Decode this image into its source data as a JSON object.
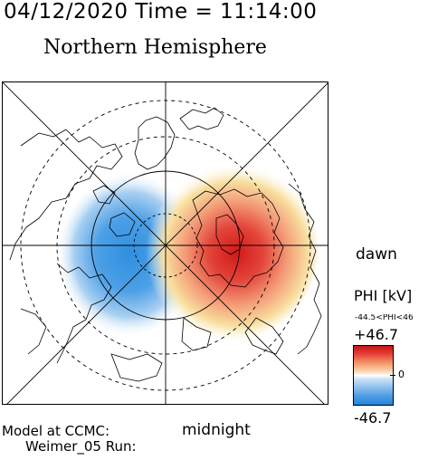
{
  "header": {
    "timestamp": "04/12/2020 Time = 11:14:00",
    "hemisphere": "Northern Hemisphere"
  },
  "map": {
    "orientation_labels": {
      "dawn": "dawn",
      "midnight": "midnight"
    },
    "potential_pattern": {
      "dusk_cell": {
        "sign": "negative",
        "color": "#2f8fe0"
      },
      "dawn_cell": {
        "sign": "positive",
        "color": "#d8201c"
      }
    }
  },
  "colorbar": {
    "title": "PHI [kV]",
    "range_text": "-44.5<PHI<46",
    "max_label": "+46.7",
    "zero_label": "0",
    "min_label": "-46.7",
    "colors": {
      "max": "#c41414",
      "mid": "#ffffff",
      "min": "#2585d8"
    }
  },
  "footer": {
    "model_line1": "Model at CCMC:",
    "model_line2": "Weimer_05 Run:"
  }
}
